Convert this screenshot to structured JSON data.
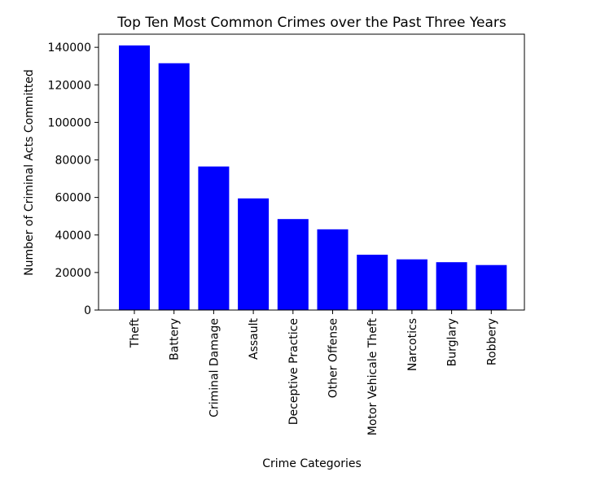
{
  "chart_data": {
    "type": "bar",
    "title": "Top Ten Most Common Crimes over the Past Three Years",
    "xlabel": "Crime Categories",
    "ylabel": "Number of Criminal Acts Committed",
    "categories": [
      "Theft",
      "Battery",
      "Criminal Damage",
      "Assault",
      "Deceptive Practice",
      "Other Offense",
      "Motor Vehicale Theft",
      "Narcotics",
      "Burglary",
      "Robbery"
    ],
    "values": [
      141000,
      131500,
      76500,
      59500,
      48500,
      43000,
      29500,
      27000,
      25500,
      24000
    ],
    "ylim": [
      0,
      147000
    ],
    "yticks": [
      0,
      20000,
      40000,
      60000,
      80000,
      100000,
      120000,
      140000
    ],
    "ytick_labels": [
      "0",
      "20000",
      "40000",
      "60000",
      "80000",
      "100000",
      "120000",
      "140000"
    ],
    "bar_color": "#0000ff",
    "grid": false,
    "legend": false
  }
}
